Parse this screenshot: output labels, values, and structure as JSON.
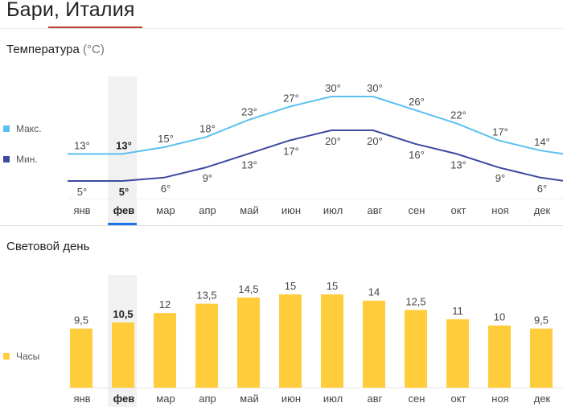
{
  "page": {
    "title": "Бари, Италия"
  },
  "temperature": {
    "section_title": "Температура",
    "unit": "(°C)",
    "legend": {
      "max_label": "Макс.",
      "min_label": "Мин."
    }
  },
  "daylight": {
    "section_title": "Световой день",
    "legend": {
      "hours_label": "Часы"
    }
  },
  "selected_month_index": 1,
  "colors": {
    "max_line": "#5bc0f0",
    "min_line": "#3d4a9e",
    "bars": "#ffcd3c",
    "selected_bg": "#f1f1f1",
    "selected_underline": "#1a73e8"
  },
  "chart_data": [
    {
      "type": "line",
      "categories": [
        "янв",
        "фев",
        "мар",
        "апр",
        "май",
        "июн",
        "июл",
        "авг",
        "сен",
        "окт",
        "ноя",
        "дек"
      ],
      "series": [
        {
          "name": "Макс.",
          "values": [
            13,
            13,
            15,
            18,
            23,
            27,
            30,
            30,
            26,
            22,
            17,
            14
          ],
          "labels": [
            "13°",
            "13°",
            "15°",
            "18°",
            "23°",
            "27°",
            "30°",
            "30°",
            "26°",
            "22°",
            "17°",
            "14°"
          ]
        },
        {
          "name": "Мин.",
          "values": [
            5,
            5,
            6,
            9,
            13,
            17,
            20,
            20,
            16,
            13,
            9,
            6
          ],
          "labels": [
            "5°",
            "5°",
            "6°",
            "9°",
            "13°",
            "17°",
            "20°",
            "20°",
            "16°",
            "13°",
            "9°",
            "6°"
          ]
        }
      ],
      "title": "Температура (°C)"
    },
    {
      "type": "bar",
      "categories": [
        "янв",
        "фев",
        "мар",
        "апр",
        "май",
        "июн",
        "июл",
        "авг",
        "сен",
        "окт",
        "ноя",
        "дек"
      ],
      "series": [
        {
          "name": "Часы",
          "values": [
            9.5,
            10.5,
            12,
            13.5,
            14.5,
            15,
            15,
            14,
            12.5,
            11,
            10,
            9.5
          ],
          "labels": [
            "9,5",
            "10,5",
            "12",
            "13,5",
            "14,5",
            "15",
            "15",
            "14",
            "12,5",
            "11",
            "10",
            "9,5"
          ]
        }
      ],
      "title": "Световой день"
    }
  ]
}
